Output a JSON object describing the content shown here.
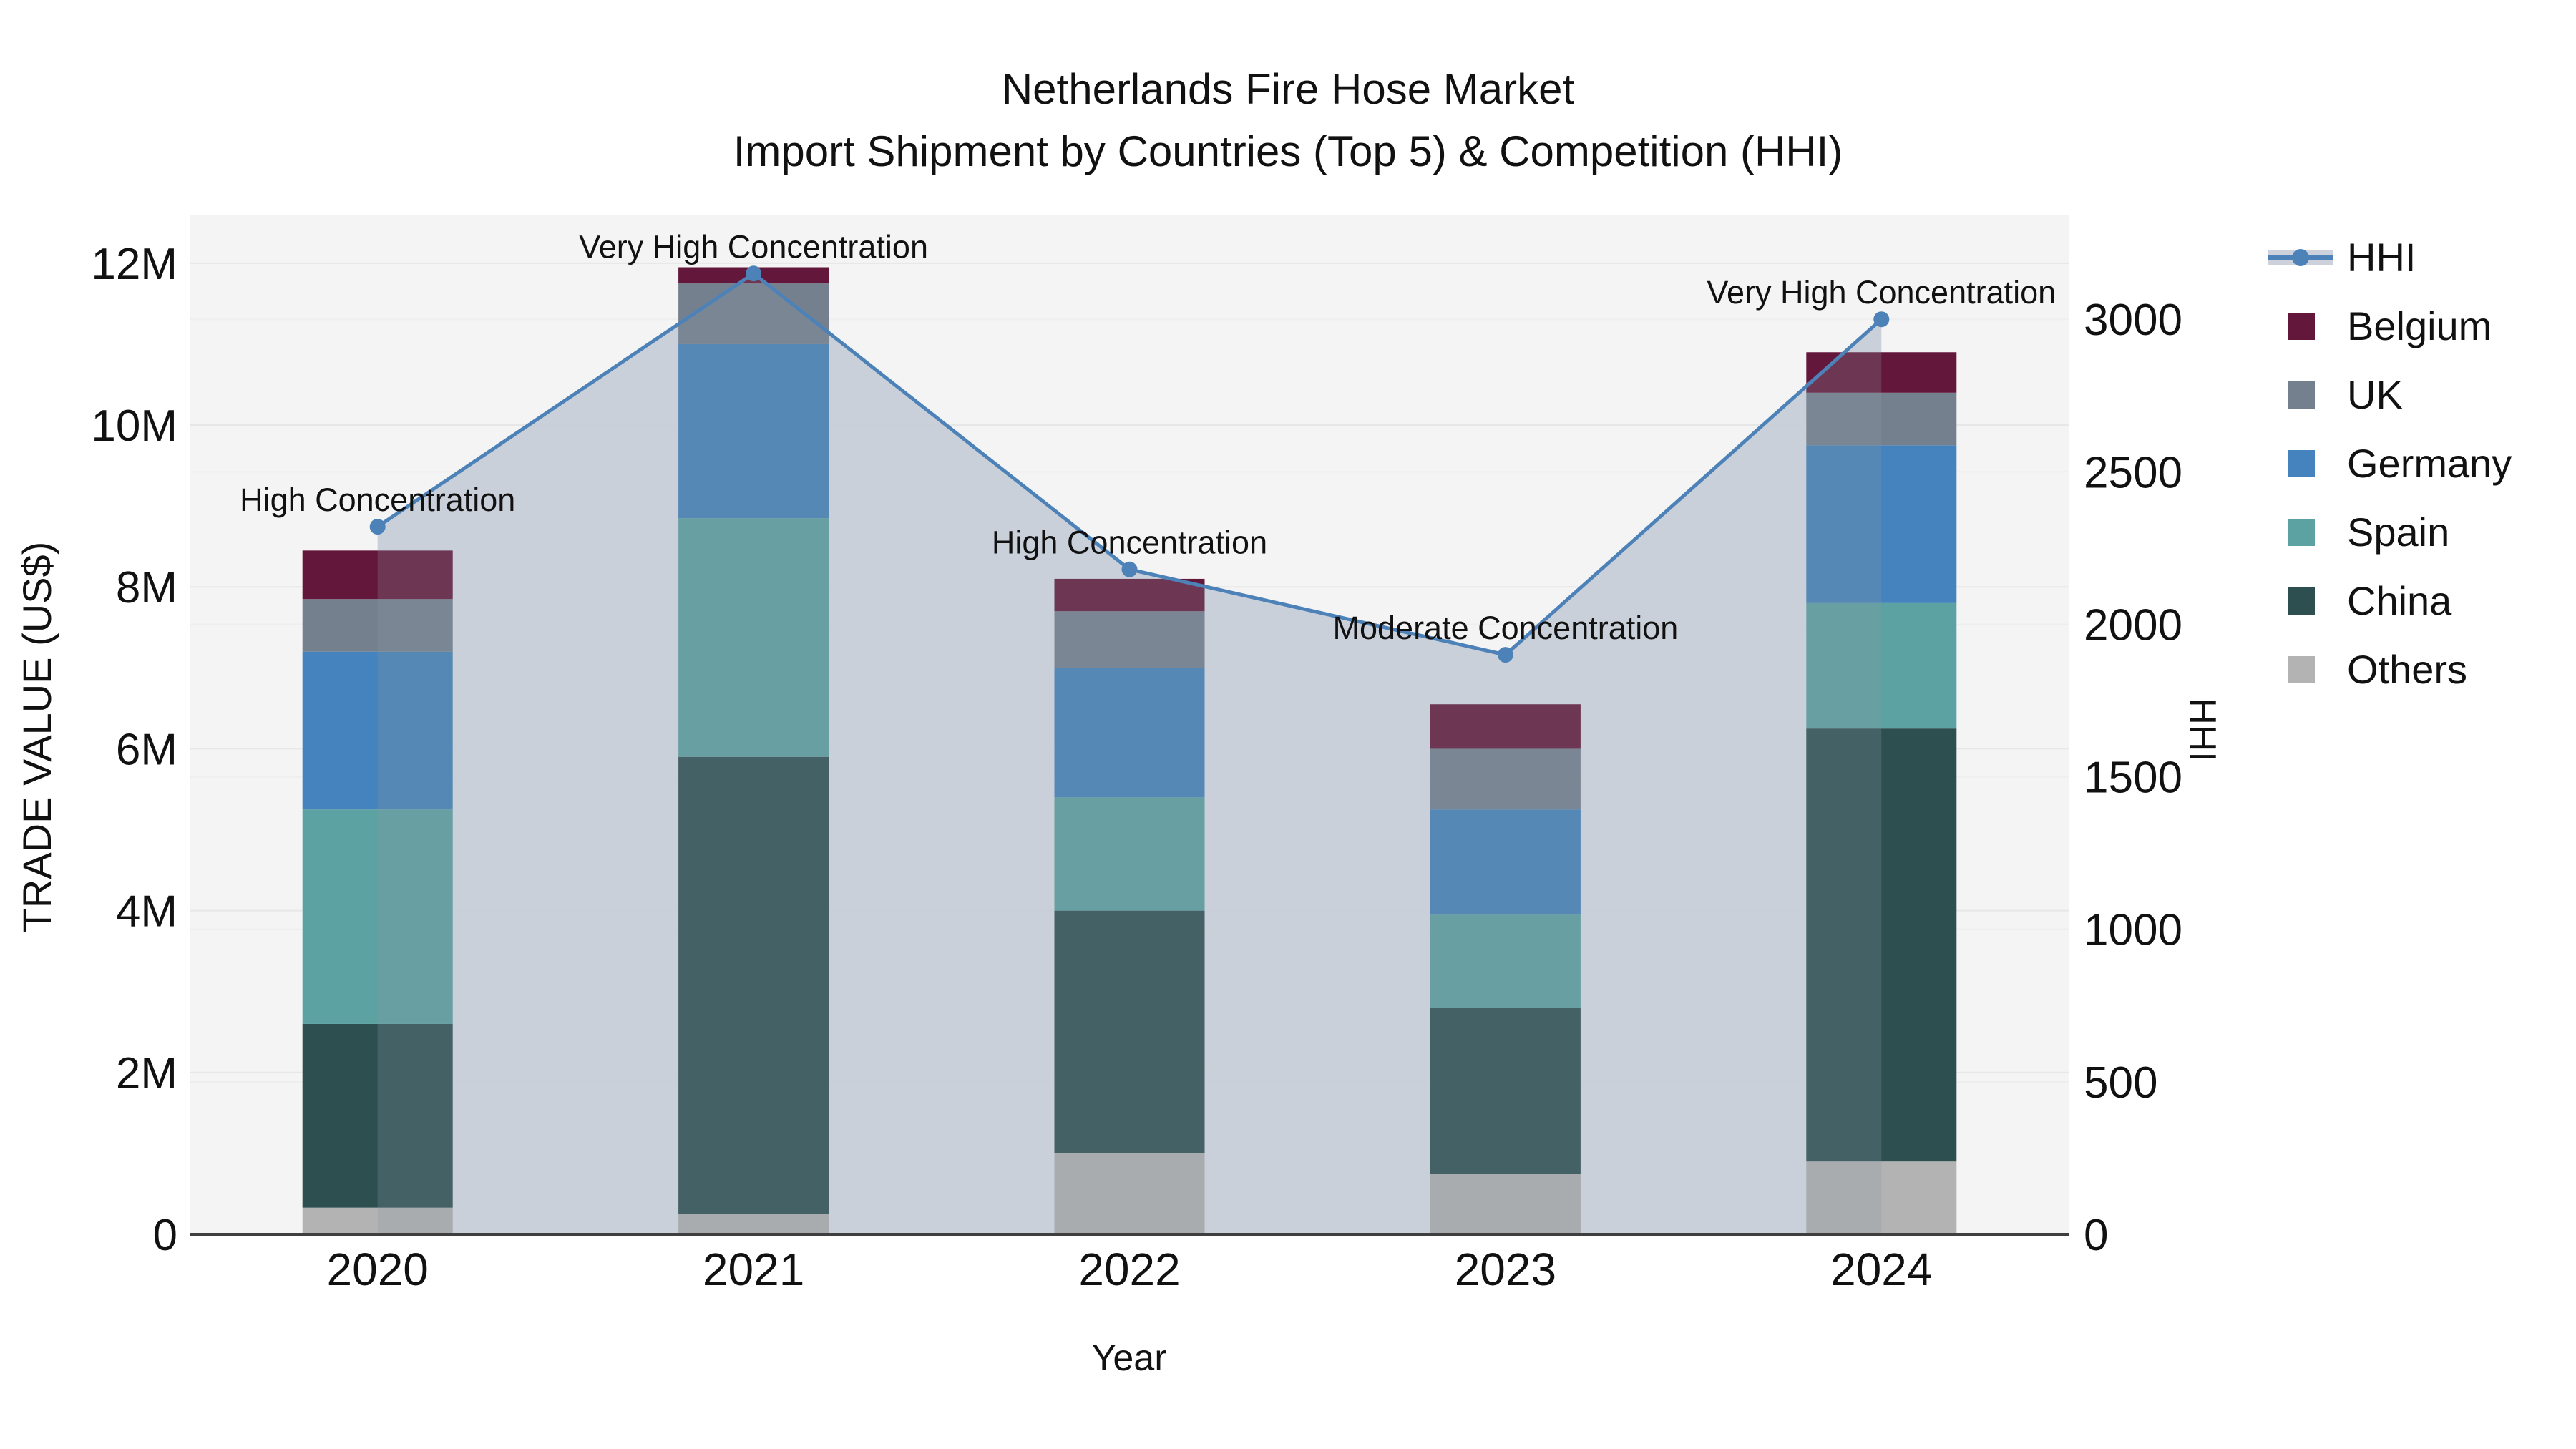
{
  "chart_data": {
    "type": "combo-stacked-bar-line",
    "title_line1": "Netherlands Fire Hose Market",
    "title_line2": "Import Shipment by Countries (Top 5) & Competition (HHI)",
    "xlabel": "Year",
    "ylabel_left": "TRADE VALUE (US$)",
    "ylabel_right": "HHI",
    "categories": [
      "2020",
      "2021",
      "2022",
      "2023",
      "2024"
    ],
    "bar_series": [
      {
        "name": "Others",
        "color": "#b3b3b3",
        "values_musd": [
          0.33,
          0.25,
          1.0,
          0.75,
          0.9
        ]
      },
      {
        "name": "China",
        "color": "#2d4f50",
        "values_musd": [
          2.27,
          5.65,
          3.0,
          2.05,
          5.35
        ]
      },
      {
        "name": "Spain",
        "color": "#5da2a2",
        "values_musd": [
          2.65,
          2.95,
          1.4,
          1.15,
          1.55
        ]
      },
      {
        "name": "Germany",
        "color": "#4483bd",
        "values_musd": [
          1.95,
          2.15,
          1.6,
          1.3,
          1.95
        ]
      },
      {
        "name": "UK",
        "color": "#75808f",
        "values_musd": [
          0.65,
          0.75,
          0.7,
          0.75,
          0.65
        ]
      },
      {
        "name": "Belgium",
        "color": "#63173a",
        "values_musd": [
          0.6,
          0.2,
          0.4,
          0.55,
          0.5
        ]
      }
    ],
    "bar_totals_musd": [
      8.45,
      11.95,
      8.1,
      6.55,
      10.9
    ],
    "line_series": {
      "name": "HHI",
      "color": "#4d82b8",
      "values": [
        2320,
        3150,
        2180,
        1900,
        3000
      ],
      "area_base_fill": "#dde1eb",
      "area_overlay_fill": "rgba(140,150,165,0.25)"
    },
    "annotations": [
      {
        "year": "2020",
        "text": "High Concentration"
      },
      {
        "year": "2021",
        "text": "Very High Concentration"
      },
      {
        "year": "2022",
        "text": "High Concentration"
      },
      {
        "year": "2023",
        "text": "Moderate Concentration"
      },
      {
        "year": "2024",
        "text": "Very High Concentration"
      }
    ],
    "left_axis": {
      "title": "TRADE VALUE (US$)",
      "max_m": 12.6,
      "ticks": [
        {
          "m": 0,
          "label": "0"
        },
        {
          "m": 2,
          "label": "2M"
        },
        {
          "m": 4,
          "label": "4M"
        },
        {
          "m": 6,
          "label": "6M"
        },
        {
          "m": 8,
          "label": "8M"
        },
        {
          "m": 10,
          "label": "10M"
        },
        {
          "m": 12,
          "label": "12M"
        }
      ]
    },
    "right_axis": {
      "title": "HHI",
      "max": 3343,
      "ticks": [
        {
          "v": 0,
          "label": "0"
        },
        {
          "v": 500,
          "label": "500"
        },
        {
          "v": 1000,
          "label": "1000"
        },
        {
          "v": 1500,
          "label": "1500"
        },
        {
          "v": 2000,
          "label": "2000"
        },
        {
          "v": 2500,
          "label": "2500"
        },
        {
          "v": 3000,
          "label": "3000"
        }
      ]
    },
    "legend": {
      "position": "right",
      "items": [
        "HHI",
        "Belgium",
        "UK",
        "Germany",
        "Spain",
        "China",
        "Others"
      ]
    },
    "colors": {
      "plot_bg": "#f4f4f4",
      "grid_major": "#e7e7e7",
      "grid_minor": "#eeeeee",
      "axis_line": "#3f3f3f",
      "text": "#111111"
    }
  }
}
